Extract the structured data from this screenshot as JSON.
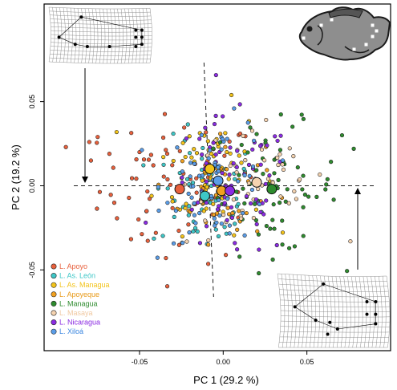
{
  "chart_data": {
    "type": "scatter",
    "xlabel": "PC 1 (29.2 %)",
    "ylabel": "PC 2 (19.2 %)",
    "xlim": [
      -0.107,
      0.1
    ],
    "ylim": [
      -0.098,
      0.108
    ],
    "xticks": [
      -0.05,
      0.0,
      0.05
    ],
    "xtick_labels": [
      "-0.05",
      "0.00",
      "0.05"
    ],
    "yticks": [
      -0.05,
      0.0,
      0.05
    ],
    "ytick_labels": [
      "-0.05",
      "0.00",
      "0.05"
    ],
    "grid": false,
    "reference_lines": {
      "x": 0,
      "y": 0,
      "style": "dashed"
    },
    "legend_placement": "bottom-left",
    "series": [
      {
        "name": "L. Apoyo",
        "color": "#e8603c",
        "text_color": "#e8603c",
        "centroid": [
          -0.026,
          -0.002
        ],
        "spread": [
          0.024,
          0.022
        ],
        "n": 70,
        "outliers": [
          [
            -0.08,
            0.026
          ],
          [
            -0.075,
            0.029
          ],
          [
            -0.094,
            0.023
          ],
          [
            -0.068,
            0.019
          ],
          [
            -0.079,
            0.015
          ],
          [
            -0.05,
            0.02
          ]
        ]
      },
      {
        "name": "L. As. León",
        "color": "#3ec7c7",
        "text_color": "#3ec7c7",
        "centroid": [
          -0.011,
          -0.006
        ],
        "spread": [
          0.016,
          0.017
        ],
        "n": 65,
        "outliers": []
      },
      {
        "name": "L. As. Managua",
        "color": "#f2c31a",
        "text_color": "#f2c31a",
        "centroid": [
          -0.008,
          0.01
        ],
        "spread": [
          0.016,
          0.019
        ],
        "n": 65,
        "outliers": []
      },
      {
        "name": "L. Apoyeque",
        "color": "#f0a020",
        "text_color": "#e89a18",
        "centroid": [
          -0.001,
          -0.003
        ],
        "spread": [
          0.013,
          0.015
        ],
        "n": 45,
        "outliers": []
      },
      {
        "name": "L. Managua",
        "color": "#2e8b2e",
        "text_color": "#2e8b2e",
        "centroid": [
          0.029,
          -0.002
        ],
        "spread": [
          0.02,
          0.019
        ],
        "n": 70,
        "outliers": [
          [
            0.078,
            0.022
          ],
          [
            0.071,
            0.03
          ]
        ]
      },
      {
        "name": "L. Masaya",
        "color": "#f5d3b0",
        "text_color": "#f0c8a0",
        "centroid": [
          0.02,
          0.002
        ],
        "spread": [
          0.021,
          0.019
        ],
        "n": 50,
        "outliers": [
          [
            0.076,
            -0.033
          ]
        ]
      },
      {
        "name": "L. Nicaragua",
        "color": "#8a2be2",
        "text_color": "#8a2be2",
        "centroid": [
          0.004,
          -0.003
        ],
        "spread": [
          0.019,
          0.021
        ],
        "n": 75,
        "outliers": []
      },
      {
        "name": "L. Xiloá",
        "color": "#5a9de8",
        "text_color": "#3a86e0",
        "centroid": [
          -0.003,
          0.003
        ],
        "spread": [
          0.016,
          0.018
        ],
        "n": 65,
        "outliers": []
      }
    ]
  }
}
